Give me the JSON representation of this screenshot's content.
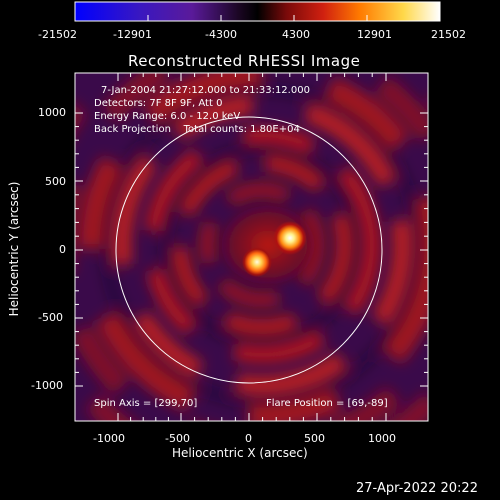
{
  "colorbar": {
    "tick_labels": [
      "-21502",
      "-12901",
      "-4300",
      "4300",
      "12901",
      "21502"
    ],
    "range": [
      -21502,
      21502
    ],
    "colors": [
      "#0000ff",
      "#6a2aa8",
      "#000000",
      "#b01010",
      "#ff8c00",
      "#ffff80",
      "#ffffff"
    ]
  },
  "plot": {
    "title": "Reconstructed RHESSI Image",
    "annotation_lines": [
      "7-Jan-2004 21:27:12.000 to 21:33:12.000",
      "Detectors: 7F 8F 9F, Att 0",
      "Energy Range: 6.0 - 12.0 keV",
      "Back Projection    Total counts: 1.80E+04"
    ],
    "spin_axis_label": "Spin Axis = [299,70]",
    "flare_position_label": "Flare Position = [69,-89]",
    "xlabel": "Heliocentric X (arcsec)",
    "ylabel": "Heliocentric Y (arcsec)",
    "x_ticks": [
      "-1000",
      "-500",
      "0",
      "500",
      "1000"
    ],
    "y_ticks": [
      "1000",
      "500",
      "0",
      "-500",
      "-1000"
    ],
    "sources": [
      {
        "x": 299,
        "y": 70,
        "label": "Spin Axis"
      },
      {
        "x": 69,
        "y": -89,
        "label": "Flare Position"
      }
    ],
    "limb_color": "#ffffff",
    "background_color": "#3a0a4a"
  },
  "timestamp": "27-Apr-2022 20:22"
}
